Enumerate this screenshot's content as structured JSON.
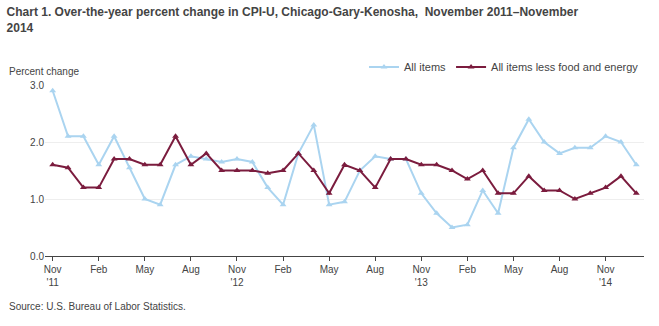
{
  "chart_data": {
    "type": "line",
    "title": "Chart 1. Over-the-year percent change in CPI-U, Chicago-Gary-Kenosha,  November 2011–November\n2014",
    "ylabel": "Percent change",
    "source": "Source: U.S. Bureau of Labor Statistics.",
    "categories": [
      "Nov\n'11",
      null,
      null,
      "Feb",
      null,
      null,
      "May",
      null,
      null,
      "Aug",
      null,
      null,
      "Nov\n'12",
      null,
      null,
      "Feb",
      null,
      null,
      "May",
      null,
      null,
      "Aug",
      null,
      null,
      "Nov\n'13",
      null,
      null,
      "Feb",
      null,
      null,
      "May",
      null,
      null,
      "Aug",
      null,
      null,
      "Nov\n'14",
      null,
      null
    ],
    "series": [
      {
        "name": "All items",
        "color": "#aad4f0",
        "marker": "triangle-up",
        "values": [
          2.9,
          2.1,
          2.1,
          1.6,
          2.1,
          1.55,
          1.0,
          0.9,
          1.6,
          1.75,
          1.7,
          1.65,
          1.7,
          1.65,
          1.2,
          0.9,
          1.8,
          2.3,
          0.9,
          0.95,
          1.5,
          1.75,
          1.7,
          1.7,
          1.1,
          0.75,
          0.5,
          0.55,
          1.15,
          0.75,
          1.9,
          2.4,
          2.0,
          1.8,
          1.9,
          1.9,
          2.1,
          2.0,
          1.6
        ]
      },
      {
        "name": "All items less food and energy",
        "color": "#7b1c3e",
        "marker": "triangle-up",
        "values": [
          1.6,
          1.55,
          1.2,
          1.2,
          1.7,
          1.7,
          1.6,
          1.6,
          2.1,
          1.6,
          1.8,
          1.5,
          1.5,
          1.5,
          1.45,
          1.5,
          1.8,
          1.5,
          1.1,
          1.6,
          1.5,
          1.2,
          1.7,
          1.7,
          1.6,
          1.6,
          1.5,
          1.35,
          1.5,
          1.1,
          1.1,
          1.4,
          1.15,
          1.15,
          1.0,
          1.1,
          1.2,
          1.4,
          1.1
        ]
      }
    ],
    "ylim": [
      0.0,
      3.0
    ],
    "yticks": [
      {
        "value": 0,
        "label": "0.0"
      },
      {
        "value": 1,
        "label": "1.0"
      },
      {
        "value": 2,
        "label": "2.0"
      },
      {
        "value": 3,
        "label": "3.0"
      }
    ],
    "grid": true,
    "legend": "upper right"
  }
}
